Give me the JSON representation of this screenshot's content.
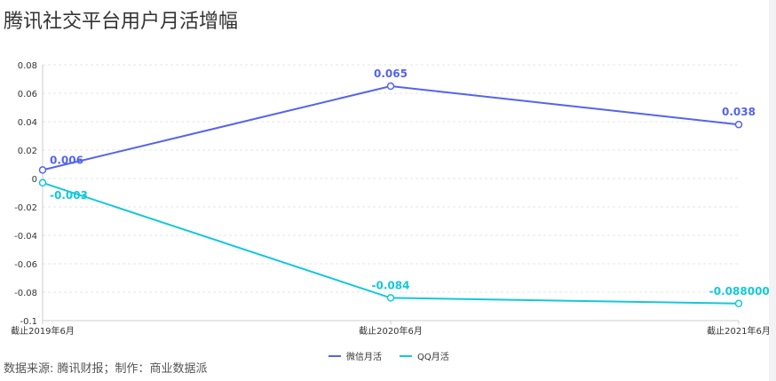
{
  "title": "腾讯社交平台用户月活增幅",
  "source": "数据来源: 腾讯财报；制作：商业数据派",
  "chart_data": {
    "type": "line",
    "categories": [
      "截止2019年6月",
      "截止2020年6月",
      "截止2021年6月"
    ],
    "series": [
      {
        "name": "微信月活",
        "values": [
          0.006,
          0.065,
          0.038
        ],
        "labels": [
          "0.006",
          "0.065",
          "0.038"
        ],
        "color": "#5463ef"
      },
      {
        "name": "QQ月活",
        "values": [
          -0.003,
          -0.084,
          -0.088
        ],
        "labels": [
          "-0.003",
          "-0.084",
          "-0.0880000000000"
        ],
        "color": "#14c8d8"
      }
    ],
    "yticks": [
      "0.08",
      "0.06",
      "0.04",
      "0.02",
      "0",
      "-0.02",
      "-0.04",
      "-0.06",
      "-0.08",
      "-0.1"
    ],
    "ylim": [
      -0.1,
      0.08
    ],
    "legend": "bottom-center"
  }
}
